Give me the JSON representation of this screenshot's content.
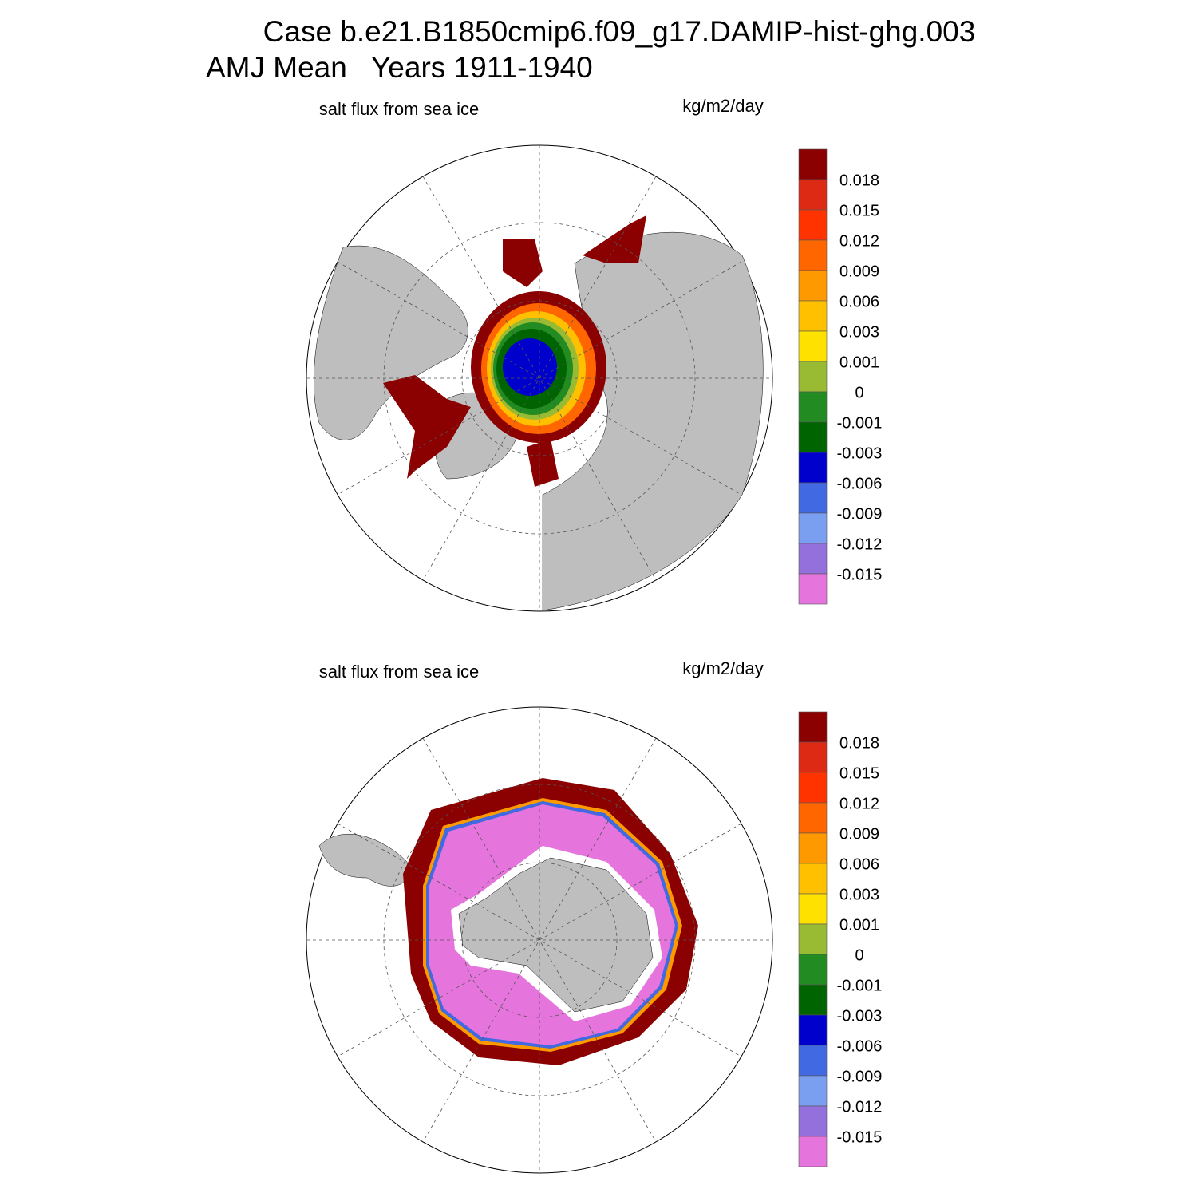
{
  "header": {
    "line1": "Case b.e21.B1850cmip6.f09_g17.DAMIP-hist-ghg.003",
    "line2": "AMJ Mean   Years 1911-1940"
  },
  "panels": [
    {
      "title": "salt flux from sea ice",
      "units": "kg/m2/day",
      "colorbar": {
        "colors": [
          "#8b0000",
          "#dd2a14",
          "#ff3300",
          "#ff6600",
          "#ff9900",
          "#ffc000",
          "#ffe100",
          "#99bb33",
          "#228b22",
          "#006400",
          "#0000cd",
          "#4169e1",
          "#7b9ff0",
          "#9370db",
          "#e574dc"
        ],
        "labels": [
          "0.018",
          "0.015",
          "0.012",
          "0.009",
          "0.006",
          "0.003",
          "0.001",
          "0",
          "-0.001",
          "-0.003",
          "-0.006",
          "-0.009",
          "-0.012",
          "-0.015"
        ]
      }
    },
    {
      "title": "salt flux from sea ice",
      "units": "kg/m2/day",
      "colorbar": {
        "colors": [
          "#8b0000",
          "#dd2a14",
          "#ff3300",
          "#ff6600",
          "#ff9900",
          "#ffc000",
          "#ffe100",
          "#99bb33",
          "#228b22",
          "#006400",
          "#0000cd",
          "#4169e1",
          "#7b9ff0",
          "#9370db",
          "#e574dc"
        ],
        "labels": [
          "0.018",
          "0.015",
          "0.012",
          "0.009",
          "0.006",
          "0.003",
          "0.001",
          "0",
          "-0.001",
          "-0.003",
          "-0.006",
          "-0.009",
          "-0.012",
          "-0.015"
        ]
      }
    }
  ]
}
